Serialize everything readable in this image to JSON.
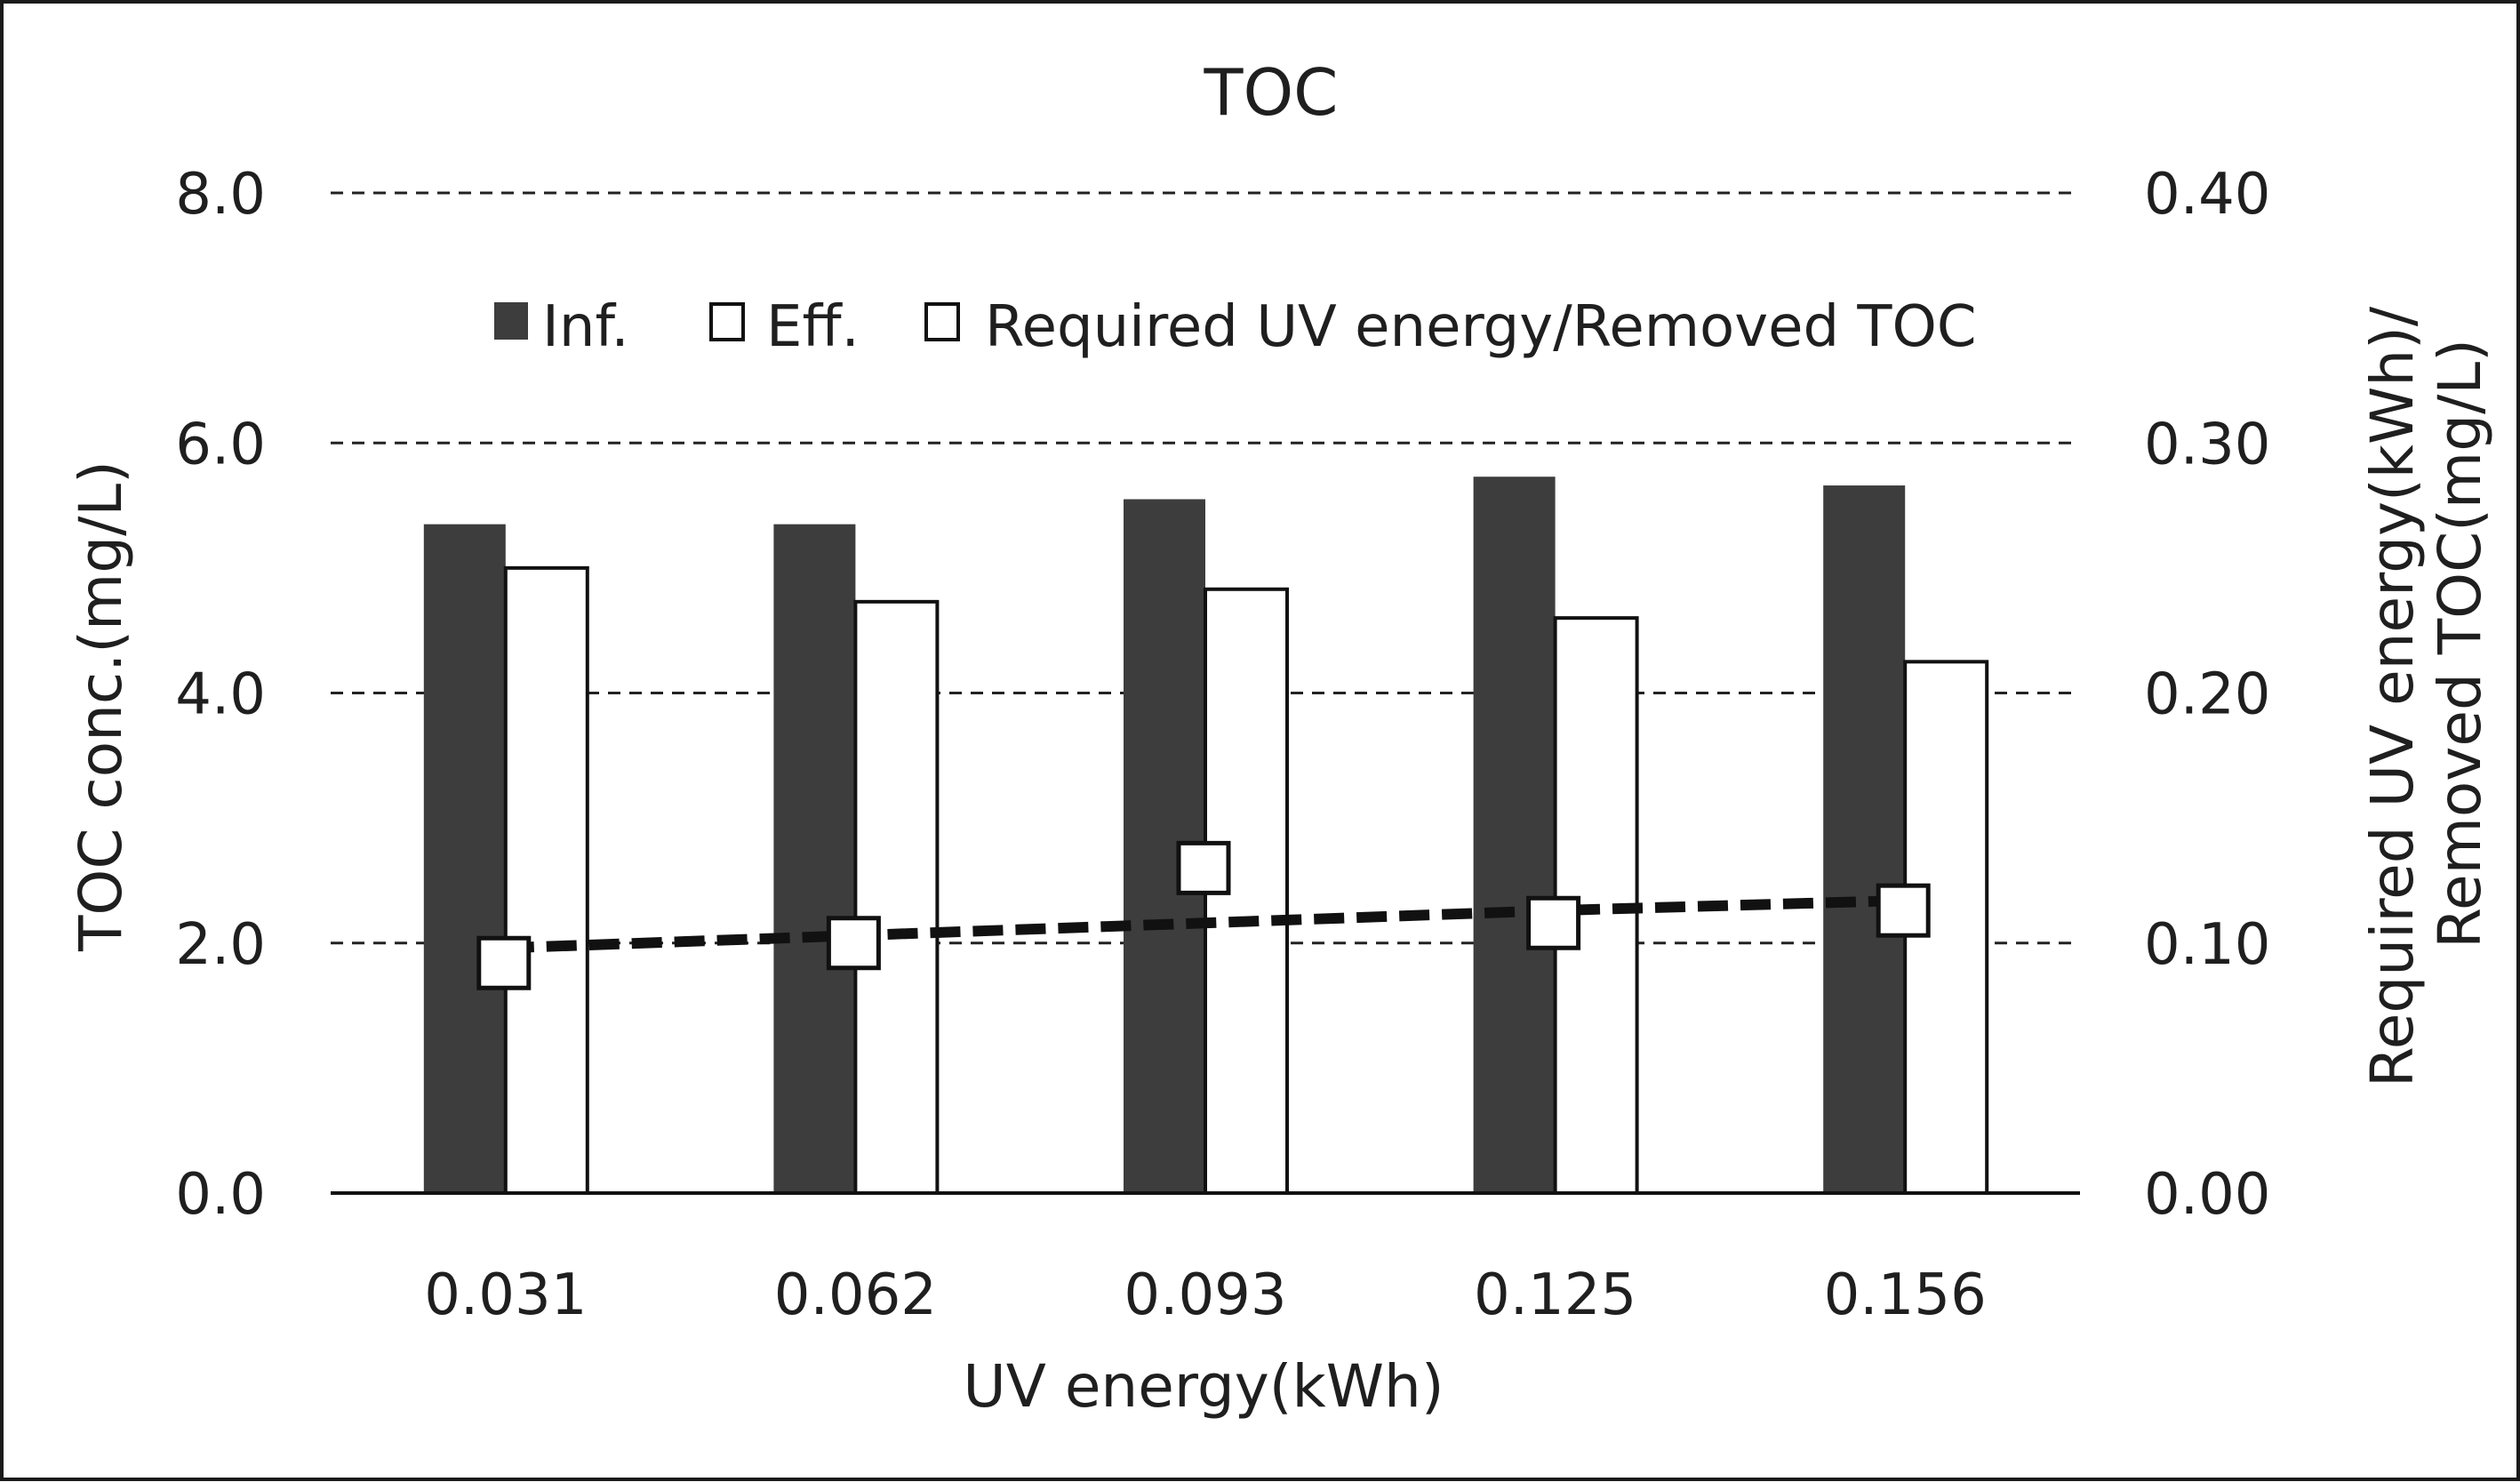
{
  "chart_data": {
    "type": "bar",
    "title": "TOC",
    "xlabel": "UV energy(kWh)",
    "ylabel": "TOC conc.(mg/L)",
    "y2label_line1": "Required UV energy(kWh)/",
    "y2label_line2": "Removed TOC(mg/L)",
    "categories": [
      "0.031",
      "0.062",
      "0.093",
      "0.125",
      "0.156"
    ],
    "ylim": [
      0,
      8
    ],
    "y2lim": [
      0,
      0.4
    ],
    "yticks": [
      "0.0",
      "2.0",
      "4.0",
      "6.0",
      "8.0"
    ],
    "y2ticks": [
      "0.00",
      "0.10",
      "0.20",
      "0.30",
      "0.40"
    ],
    "grid": "horizontal dashed",
    "legend_position": "top-center",
    "series": [
      {
        "name": "Inf.",
        "type": "bar",
        "axis": "left",
        "color": "#3d3d3d",
        "values": [
          5.35,
          5.35,
          5.55,
          5.73,
          5.66
        ]
      },
      {
        "name": "Eff.",
        "type": "bar",
        "axis": "left",
        "color": "#ffffff",
        "values": [
          5.0,
          4.73,
          4.83,
          4.6,
          4.25
        ]
      },
      {
        "name": "Required UV energy/Removed TOC",
        "type": "scatter",
        "axis": "right",
        "color": "#ffffff",
        "values": [
          0.092,
          0.1,
          0.13,
          0.108,
          0.113
        ]
      }
    ],
    "trendline": {
      "style": "dashed",
      "color": "#111111",
      "values": [
        0.098,
        0.103,
        0.108,
        0.113,
        0.117
      ]
    }
  }
}
